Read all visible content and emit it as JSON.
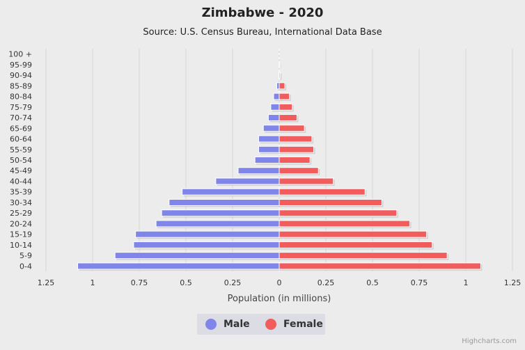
{
  "chart_data": {
    "type": "bar",
    "orientation": "horizontal",
    "title": "Zimbabwe - 2020",
    "subtitle": "Source: U.S. Census Bureau, International Data Base",
    "xlabel": "Population (in millions)",
    "xlim": [
      -1.25,
      1.25
    ],
    "x_ticks": [
      "1.25",
      "1",
      "0.75",
      "0.5",
      "0.25",
      "0",
      "0.25",
      "0.5",
      "0.75",
      "1",
      "1.25"
    ],
    "x_tick_values": [
      -1.25,
      -1,
      -0.75,
      -0.5,
      -0.25,
      0,
      0.25,
      0.5,
      0.75,
      1,
      1.25
    ],
    "grid": true,
    "legend_position": "bottom-center",
    "categories": [
      "100 +",
      "95-99",
      "90-94",
      "85-89",
      "80-84",
      "75-79",
      "70-74",
      "65-69",
      "60-64",
      "55-59",
      "50-54",
      "45-49",
      "40-44",
      "35-39",
      "30-34",
      "25-29",
      "20-24",
      "15-19",
      "10-14",
      "5-9",
      "0-4"
    ],
    "series": [
      {
        "name": "Male",
        "color": "#8085e9",
        "values": [
          0.0,
          0.0,
          0.002,
          0.013,
          0.03,
          0.045,
          0.058,
          0.085,
          0.11,
          0.11,
          0.13,
          0.22,
          0.34,
          0.52,
          0.59,
          0.63,
          0.66,
          0.77,
          0.78,
          0.88,
          1.08
        ]
      },
      {
        "name": "Female",
        "color": "#f15c5c",
        "values": [
          0.0,
          0.001,
          0.005,
          0.03,
          0.055,
          0.07,
          0.095,
          0.135,
          0.175,
          0.185,
          0.165,
          0.21,
          0.29,
          0.46,
          0.55,
          0.63,
          0.7,
          0.79,
          0.82,
          0.9,
          1.08
        ]
      }
    ]
  },
  "credits": "Highcharts.com"
}
